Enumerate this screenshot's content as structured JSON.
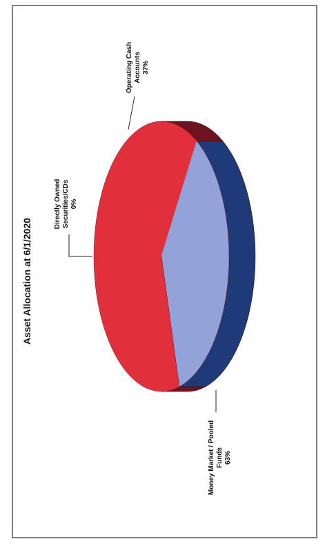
{
  "chart_data": {
    "type": "pie",
    "title": "Asset Allocation at 6/1/2020",
    "slices": [
      {
        "label_lines": [
          "Operating Cash",
          "Accounts"
        ],
        "percent_label": "37%",
        "value": 37,
        "color": "#93a3d9",
        "side_color": "#1f3a78"
      },
      {
        "label_lines": [
          "Money Market / Pooled",
          "Funds"
        ],
        "percent_label": "63%",
        "value": 63,
        "color": "#e0303c",
        "side_color": "#6e1420"
      },
      {
        "label_lines": [
          "Directly Owned",
          "Securities/CDs"
        ],
        "percent_label": "0%",
        "value": 0,
        "color": "#8fa0d6",
        "side_color": "#1f3a78"
      }
    ],
    "legend": "none",
    "rotation": "page rotated 90 degrees counter-clockwise"
  }
}
